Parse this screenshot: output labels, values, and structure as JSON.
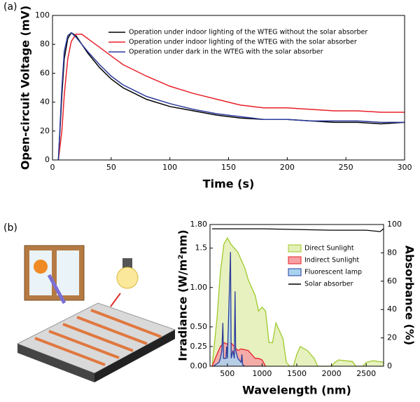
{
  "chart_data": [
    {
      "type": "line",
      "panel_label": "(a)",
      "x_label": "Time (s)",
      "y_label": "Open-circuit Voltage (mV)",
      "x": [
        5,
        8,
        10,
        13,
        16,
        20,
        25,
        30,
        40,
        50,
        60,
        80,
        100,
        120,
        140,
        160,
        180,
        200,
        220,
        240,
        260,
        280,
        300
      ],
      "series": [
        {
          "name": "Operation under indoor lighting of the WTEG without the solar absorber",
          "color": "#000000",
          "values": [
            0,
            45,
            70,
            84,
            88,
            86,
            80,
            74,
            64,
            56,
            50,
            42,
            37,
            34,
            31,
            29,
            28,
            28,
            27,
            26,
            26,
            25,
            26
          ]
        },
        {
          "name": "Operation under indoor lighting of the WTEG with the solar absorber",
          "color": "#e8202a",
          "values": [
            0,
            20,
            45,
            70,
            82,
            87,
            87,
            84,
            78,
            72,
            66,
            58,
            51,
            46,
            42,
            38,
            36,
            36,
            35,
            34,
            34,
            33,
            33
          ]
        },
        {
          "name": "Operation under dark in the WTEG with the solar absorber",
          "color": "#2b3a9b",
          "values": [
            0,
            50,
            75,
            86,
            88,
            85,
            80,
            75,
            66,
            58,
            52,
            44,
            39,
            35,
            32,
            30,
            28,
            28,
            27,
            27,
            27,
            26,
            26
          ]
        }
      ],
      "xlim": [
        0,
        300
      ],
      "xticks": [
        0,
        50,
        100,
        150,
        200,
        250,
        300
      ],
      "ylim": [
        0,
        100
      ],
      "yticks": [
        0,
        20,
        40,
        60,
        80,
        100
      ],
      "legend": "upper right"
    },
    {
      "type": "area",
      "panel_label": "(b)",
      "x_label": "Wavelength (nm)",
      "y_label": "Irradiance (W/m²nm)",
      "y2_label": "Absorbance (%)",
      "series": [
        {
          "name": "Direct Sunlight",
          "color": "#9ec92b",
          "fill": "#e3efb4",
          "x": [
            280,
            350,
            400,
            450,
            500,
            550,
            600,
            650,
            700,
            750,
            800,
            850,
            900,
            950,
            1000,
            1050,
            1100,
            1150,
            1200,
            1250,
            1300,
            1350,
            1400,
            1450,
            1500,
            1550,
            1650,
            1750,
            1800,
            2000,
            2050,
            2100,
            2300,
            2350,
            2450,
            2500,
            2600,
            2750
          ],
          "values": [
            0,
            0.6,
            1.2,
            1.55,
            1.63,
            1.55,
            1.5,
            1.45,
            1.35,
            1.25,
            1.1,
            1.0,
            0.9,
            0.7,
            0.75,
            0.7,
            0.3,
            0.3,
            0.55,
            0.45,
            0.35,
            0.05,
            0,
            0,
            0.15,
            0.25,
            0.2,
            0.1,
            0,
            0,
            0.05,
            0.08,
            0.06,
            0,
            0,
            0.05,
            0.07,
            0.05
          ]
        },
        {
          "name": "Indirect Sunlight",
          "color": "#e8202a",
          "fill": "#f5a0a3",
          "x": [
            280,
            350,
            400,
            450,
            500,
            550,
            600,
            650,
            700,
            800,
            850,
            900,
            950,
            1000,
            1050
          ],
          "values": [
            0,
            0.15,
            0.25,
            0.3,
            0.28,
            0.3,
            0.25,
            0.2,
            0.22,
            0.2,
            0.15,
            0.1,
            0.1,
            0.08,
            0
          ]
        },
        {
          "name": "Fluorescent lamp",
          "color": "#2b3a9b",
          "fill": "#a9d4f0",
          "x": [
            300,
            380,
            400,
            420,
            435,
            445,
            480,
            490,
            500,
            545,
            555,
            580,
            600,
            611,
            620,
            650,
            700,
            710,
            720,
            750
          ],
          "values": [
            0,
            0.05,
            0.1,
            0.2,
            0.55,
            0.1,
            0.1,
            0.25,
            0.1,
            1.45,
            0.1,
            0.2,
            0.1,
            0.95,
            0.2,
            0.1,
            0.05,
            0.15,
            0.02,
            0
          ]
        },
        {
          "name": "Solar absorber",
          "color": "#000000",
          "axis": "y2",
          "x": [
            280,
            500,
            1000,
            1500,
            2000,
            2500,
            2700,
            2750
          ],
          "values": [
            97,
            97,
            97,
            96.5,
            96,
            96,
            95,
            97
          ]
        }
      ],
      "xlim": [
        250,
        2750
      ],
      "xticks": [
        500,
        1000,
        1500,
        2000,
        2500
      ],
      "ylim": [
        0,
        1.8
      ],
      "yticks": [
        {
          "value": 0,
          "label": "0.00"
        },
        {
          "value": 0.25,
          "label": "0.25"
        },
        {
          "value": 0.5,
          "label": "0.50"
        },
        {
          "value": 1,
          "label": "1.00"
        },
        1.5,
        {
          "value": 1.8,
          "label": "1.80"
        }
      ],
      "y2lim": [
        0,
        100
      ],
      "y2ticks": [
        0,
        20,
        40,
        60,
        80,
        100
      ],
      "legend": "upper right"
    }
  ]
}
